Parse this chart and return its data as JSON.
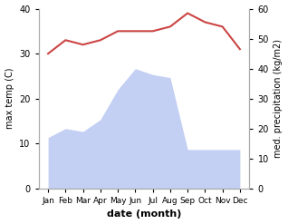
{
  "months": [
    "Jan",
    "Feb",
    "Mar",
    "Apr",
    "May",
    "Jun",
    "Jul",
    "Aug",
    "Sep",
    "Oct",
    "Nov",
    "Dec"
  ],
  "temp": [
    30,
    33,
    32,
    33,
    35,
    35,
    35,
    36,
    39,
    37,
    36,
    31
  ],
  "precip_mm": [
    17,
    20,
    19,
    23,
    33,
    40,
    38,
    37,
    13,
    13,
    13,
    13
  ],
  "temp_color": "#cc4444",
  "precip_color": "#aabbee",
  "temp_ylim": [
    0,
    40
  ],
  "precip_ylim": [
    0,
    60
  ],
  "temp_yticks": [
    0,
    10,
    20,
    30,
    40
  ],
  "precip_yticks": [
    0,
    10,
    20,
    30,
    40,
    50,
    60
  ],
  "ylabel_left": "max temp (C)",
  "ylabel_right": "med. precipitation (kg/m2)",
  "xlabel": "date (month)",
  "bg_color": "#ffffff"
}
